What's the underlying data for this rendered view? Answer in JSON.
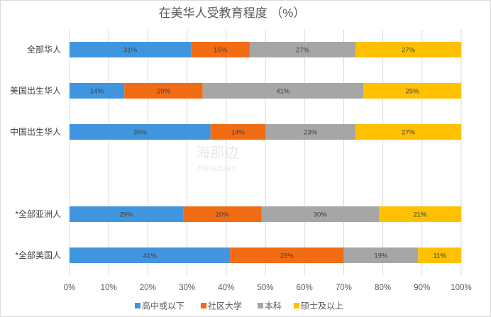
{
  "chart_data": {
    "type": "bar",
    "orientation": "horizontal",
    "stacked": "percent",
    "title": "在美华人受教育程度 （%）",
    "categories": [
      "全部华人",
      "美国出生华人",
      "中国出生华人",
      "",
      "*全部亚洲人",
      "*全部美国人"
    ],
    "series": [
      {
        "name": "高中或以下",
        "color": "#4096DE",
        "values": [
          31,
          14,
          36,
          null,
          29,
          41
        ]
      },
      {
        "name": "社区大学",
        "color": "#F26C14",
        "values": [
          15,
          20,
          14,
          null,
          20,
          29
        ]
      },
      {
        "name": "本科",
        "color": "#A6A6A6",
        "values": [
          27,
          41,
          23,
          null,
          30,
          19
        ]
      },
      {
        "name": "硕士及以上",
        "color": "#FFC000",
        "values": [
          27,
          25,
          27,
          null,
          21,
          11
        ]
      }
    ],
    "value_suffix": "%",
    "xlim": [
      0,
      100
    ],
    "xticks": [
      0,
      10,
      20,
      30,
      40,
      50,
      60,
      70,
      80,
      90,
      100
    ],
    "grid": "vertical",
    "legend": "bottom"
  },
  "watermark": {
    "cn": "海那边",
    "en": "Hinabian"
  }
}
